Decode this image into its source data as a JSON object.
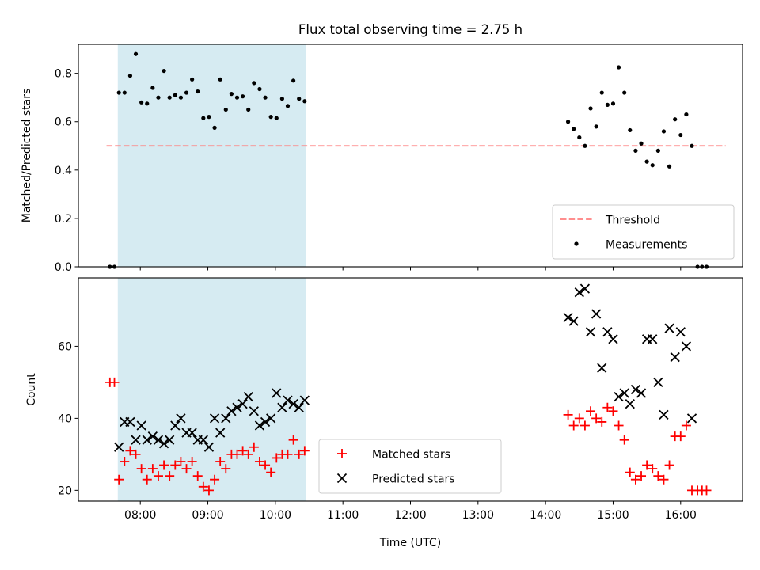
{
  "chart_data": [
    {
      "type": "scatter",
      "title": "Flux total observing time = 2.75 h",
      "xlabel": "",
      "ylabel": "Matched/Predicted stars",
      "ylim": [
        0,
        0.92
      ],
      "y_ticks": [
        "0.0",
        "0.2",
        "0.4",
        "0.6",
        "0.8"
      ],
      "x_tick_labels_shown": false,
      "highlight_span": [
        "07:40",
        "10:27"
      ],
      "legend_position": "lower-right",
      "threshold": {
        "name": "Threshold",
        "value": 0.5,
        "x_range": [
          "07:30",
          "16:40"
        ],
        "color": "#ff7f7f",
        "style": "dashed"
      },
      "series": [
        {
          "name": "Measurements",
          "color": "#000000",
          "marker": "dot",
          "points": [
            [
              "07:33",
              0.0
            ],
            [
              "07:37",
              0.0
            ],
            [
              "07:41",
              0.72
            ],
            [
              "07:46",
              0.72
            ],
            [
              "07:51",
              0.79
            ],
            [
              "07:56",
              0.88
            ],
            [
              "08:01",
              0.68
            ],
            [
              "08:06",
              0.675
            ],
            [
              "08:11",
              0.74
            ],
            [
              "08:16",
              0.7
            ],
            [
              "08:21",
              0.81
            ],
            [
              "08:26",
              0.7
            ],
            [
              "08:31",
              0.71
            ],
            [
              "08:36",
              0.7
            ],
            [
              "08:41",
              0.72
            ],
            [
              "08:46",
              0.775
            ],
            [
              "08:51",
              0.725
            ],
            [
              "08:56",
              0.615
            ],
            [
              "09:01",
              0.62
            ],
            [
              "09:06",
              0.575
            ],
            [
              "09:11",
              0.775
            ],
            [
              "09:16",
              0.65
            ],
            [
              "09:21",
              0.715
            ],
            [
              "09:26",
              0.7
            ],
            [
              "09:31",
              0.705
            ],
            [
              "09:36",
              0.65
            ],
            [
              "09:41",
              0.76
            ],
            [
              "09:46",
              0.735
            ],
            [
              "09:51",
              0.7
            ],
            [
              "09:56",
              0.62
            ],
            [
              "10:01",
              0.615
            ],
            [
              "10:06",
              0.695
            ],
            [
              "10:11",
              0.665
            ],
            [
              "10:16",
              0.77
            ],
            [
              "10:21",
              0.695
            ],
            [
              "10:26",
              0.685
            ],
            [
              "14:20",
              0.6
            ],
            [
              "14:25",
              0.57
            ],
            [
              "14:30",
              0.535
            ],
            [
              "14:35",
              0.5
            ],
            [
              "14:40",
              0.655
            ],
            [
              "14:45",
              0.58
            ],
            [
              "14:50",
              0.72
            ],
            [
              "14:55",
              0.67
            ],
            [
              "15:00",
              0.675
            ],
            [
              "15:05",
              0.825
            ],
            [
              "15:10",
              0.72
            ],
            [
              "15:15",
              0.565
            ],
            [
              "15:20",
              0.48
            ],
            [
              "15:25",
              0.51
            ],
            [
              "15:30",
              0.435
            ],
            [
              "15:35",
              0.42
            ],
            [
              "15:40",
              0.48
            ],
            [
              "15:45",
              0.56
            ],
            [
              "15:50",
              0.415
            ],
            [
              "15:55",
              0.61
            ],
            [
              "16:00",
              0.545
            ],
            [
              "16:05",
              0.63
            ],
            [
              "16:10",
              0.5
            ],
            [
              "16:15",
              0.0
            ],
            [
              "16:19",
              0.0
            ],
            [
              "16:23",
              0.0
            ]
          ]
        }
      ]
    },
    {
      "type": "scatter",
      "title": "",
      "xlabel": "Time (UTC)",
      "ylabel": "Count",
      "ylim": [
        17,
        79
      ],
      "y_ticks": [
        "20",
        "40",
        "60"
      ],
      "xlim": [
        "07:05",
        "16:55"
      ],
      "x_ticks": [
        "08:00",
        "09:00",
        "10:00",
        "11:00",
        "12:00",
        "13:00",
        "14:00",
        "15:00",
        "16:00"
      ],
      "highlight_span": [
        "07:40",
        "10:27"
      ],
      "legend_position": "lower-center",
      "series": [
        {
          "name": "Matched stars",
          "color": "#ff0000",
          "marker": "plus",
          "points": [
            [
              "07:33",
              50
            ],
            [
              "07:37",
              50
            ],
            [
              "07:41",
              23
            ],
            [
              "07:46",
              28
            ],
            [
              "07:51",
              31
            ],
            [
              "07:56",
              30
            ],
            [
              "08:01",
              26
            ],
            [
              "08:06",
              23
            ],
            [
              "08:11",
              26
            ],
            [
              "08:16",
              24
            ],
            [
              "08:21",
              27
            ],
            [
              "08:26",
              24
            ],
            [
              "08:31",
              27
            ],
            [
              "08:36",
              28
            ],
            [
              "08:41",
              26
            ],
            [
              "08:46",
              28
            ],
            [
              "08:51",
              24
            ],
            [
              "08:56",
              21
            ],
            [
              "09:01",
              20
            ],
            [
              "09:06",
              23
            ],
            [
              "09:11",
              28
            ],
            [
              "09:16",
              26
            ],
            [
              "09:21",
              30
            ],
            [
              "09:26",
              30
            ],
            [
              "09:31",
              31
            ],
            [
              "09:36",
              30
            ],
            [
              "09:41",
              32
            ],
            [
              "09:46",
              28
            ],
            [
              "09:51",
              27
            ],
            [
              "09:56",
              25
            ],
            [
              "10:01",
              29
            ],
            [
              "10:06",
              30
            ],
            [
              "10:11",
              30
            ],
            [
              "10:16",
              34
            ],
            [
              "10:21",
              30
            ],
            [
              "10:26",
              31
            ],
            [
              "14:20",
              41
            ],
            [
              "14:25",
              38
            ],
            [
              "14:30",
              40
            ],
            [
              "14:35",
              38
            ],
            [
              "14:40",
              42
            ],
            [
              "14:45",
              40
            ],
            [
              "14:50",
              39
            ],
            [
              "14:55",
              43
            ],
            [
              "15:00",
              42
            ],
            [
              "15:05",
              38
            ],
            [
              "15:10",
              34
            ],
            [
              "15:15",
              25
            ],
            [
              "15:20",
              23
            ],
            [
              "15:25",
              24
            ],
            [
              "15:30",
              27
            ],
            [
              "15:35",
              26
            ],
            [
              "15:40",
              24
            ],
            [
              "15:45",
              23
            ],
            [
              "15:50",
              27
            ],
            [
              "15:55",
              35
            ],
            [
              "16:00",
              35
            ],
            [
              "16:05",
              38
            ],
            [
              "16:10",
              20
            ],
            [
              "16:15",
              20
            ],
            [
              "16:19",
              20
            ],
            [
              "16:23",
              20
            ]
          ]
        },
        {
          "name": "Predicted stars",
          "color": "#000000",
          "marker": "x",
          "points": [
            [
              "07:41",
              32
            ],
            [
              "07:46",
              39
            ],
            [
              "07:51",
              39
            ],
            [
              "07:56",
              34
            ],
            [
              "08:01",
              38
            ],
            [
              "08:06",
              34
            ],
            [
              "08:11",
              35
            ],
            [
              "08:16",
              34
            ],
            [
              "08:21",
              33
            ],
            [
              "08:26",
              34
            ],
            [
              "08:31",
              38
            ],
            [
              "08:36",
              40
            ],
            [
              "08:41",
              36
            ],
            [
              "08:46",
              36
            ],
            [
              "08:51",
              34
            ],
            [
              "08:56",
              34
            ],
            [
              "09:01",
              32
            ],
            [
              "09:06",
              40
            ],
            [
              "09:11",
              36
            ],
            [
              "09:16",
              40
            ],
            [
              "09:21",
              42
            ],
            [
              "09:26",
              43
            ],
            [
              "09:31",
              44
            ],
            [
              "09:36",
              46
            ],
            [
              "09:41",
              42
            ],
            [
              "09:46",
              38
            ],
            [
              "09:51",
              39
            ],
            [
              "09:56",
              40
            ],
            [
              "10:01",
              47
            ],
            [
              "10:06",
              43
            ],
            [
              "10:11",
              45
            ],
            [
              "10:16",
              44
            ],
            [
              "10:21",
              43
            ],
            [
              "10:26",
              45
            ],
            [
              "14:20",
              68
            ],
            [
              "14:25",
              67
            ],
            [
              "14:30",
              75
            ],
            [
              "14:35",
              76
            ],
            [
              "14:40",
              64
            ],
            [
              "14:45",
              69
            ],
            [
              "14:50",
              54
            ],
            [
              "14:55",
              64
            ],
            [
              "15:00",
              62
            ],
            [
              "15:05",
              46
            ],
            [
              "15:10",
              47
            ],
            [
              "15:15",
              44
            ],
            [
              "15:20",
              48
            ],
            [
              "15:25",
              47
            ],
            [
              "15:30",
              62
            ],
            [
              "15:35",
              62
            ],
            [
              "15:40",
              50
            ],
            [
              "15:45",
              41
            ],
            [
              "15:50",
              65
            ],
            [
              "15:55",
              57
            ],
            [
              "16:00",
              64
            ],
            [
              "16:05",
              60
            ],
            [
              "16:10",
              40
            ]
          ]
        }
      ]
    }
  ]
}
